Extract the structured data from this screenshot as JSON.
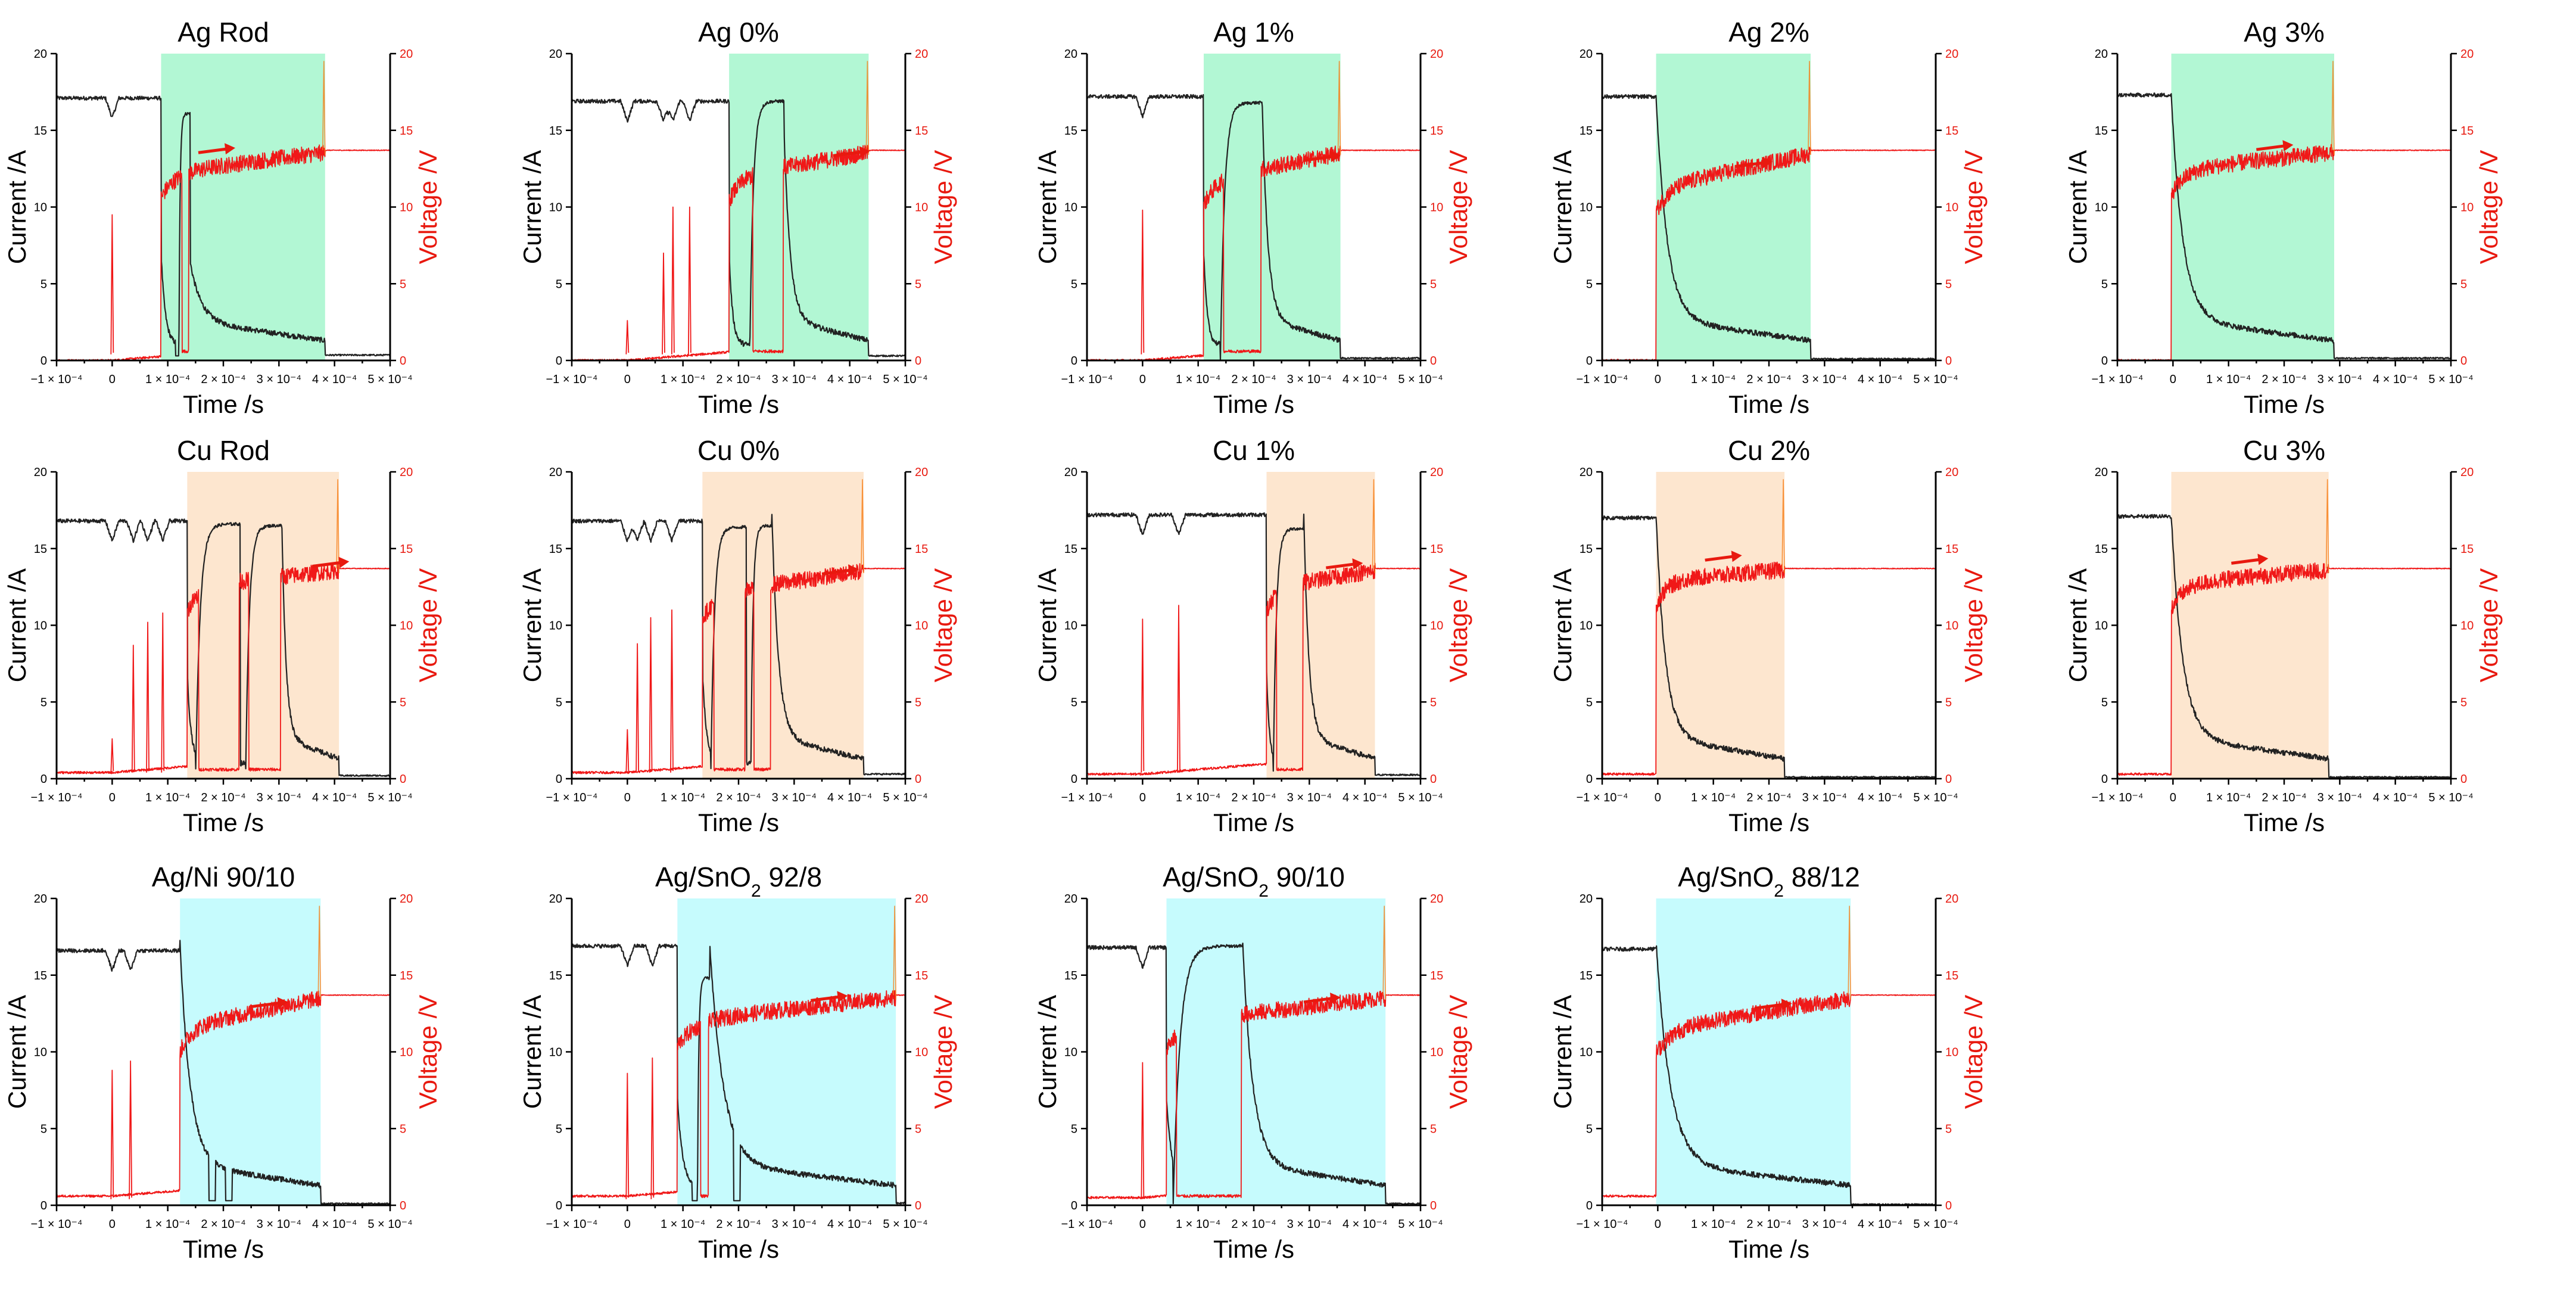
{
  "figure": {
    "shared_axes": {
      "x_label": "Time /s",
      "y_left_label": "Current /A",
      "y_right_label": "Voltage /V",
      "x_ticks": [
        "−1 × 10⁻⁴",
        "0",
        "1 × 10⁻⁴",
        "2 × 10⁻⁴",
        "3 × 10⁻⁴",
        "4 × 10⁻⁴",
        "5 × 10⁻⁴"
      ],
      "x_tick_values": [
        -0.0001,
        0,
        0.0001,
        0.0002,
        0.0003,
        0.0004,
        0.0005
      ],
      "y_left_ticks": [
        "0",
        "5",
        "10",
        "15",
        "20"
      ],
      "y_left_tick_values": [
        0,
        5,
        10,
        15,
        20
      ],
      "y_right_ticks": [
        "0",
        "5",
        "10",
        "15",
        "20"
      ],
      "y_right_tick_values": [
        0,
        5,
        10,
        15,
        20
      ],
      "xlim": [
        -0.0001,
        0.0005
      ],
      "ylim_left": [
        0,
        20
      ],
      "ylim_right": [
        0,
        20
      ]
    },
    "colors": {
      "current": "#222222",
      "voltage": "#f01818",
      "arrow": "#e8190f",
      "shade_ag": "#b2f7d4",
      "shade_cu": "#fde6cf",
      "shade_alloy": "#c6fbfd"
    }
  },
  "chart_data": [
    {
      "id": "ag-rod",
      "type": "line",
      "title": "Ag Rod",
      "shade": "shade_ag",
      "arc": [
        8.8e-05,
        0.000383
      ],
      "arrow": 0.000155,
      "drops": [
        0.00012
      ],
      "current": {
        "base": 17.1,
        "end": 0.35,
        "reignite": [
          [
            0.00012,
            0.00014,
            16.1
          ]
        ],
        "sag": 0.000115
      },
      "voltage": {
        "pre": 0,
        "level": 12.2,
        "end_level": 13.7,
        "spikes": [
          [
            0.0,
            9.5
          ]
        ]
      }
    },
    {
      "id": "ag-0",
      "type": "line",
      "title": "Ag 0%",
      "shade": "shade_ag",
      "arc": [
        0.000183,
        0.000434
      ],
      "arrow": 0.00037,
      "drops": [],
      "current": {
        "base": 16.9,
        "end": 0.3,
        "reignite": [
          [
            0.00022,
            0.000282,
            16.9
          ]
        ],
        "sag": 0.00028
      },
      "voltage": {
        "pre": 0,
        "level": 12.0,
        "end_level": 13.7,
        "spikes": [
          [
            0.0,
            2.6
          ],
          [
            6.5e-05,
            7
          ],
          [
            8.2e-05,
            10
          ],
          [
            0.000112,
            10
          ]
        ]
      }
    },
    {
      "id": "ag-1",
      "type": "line",
      "title": "Ag 1%",
      "shade": "shade_ag",
      "arc": [
        0.00011,
        0.000356
      ],
      "arrow": 0.00029,
      "drops": [],
      "current": {
        "base": 17.2,
        "end": 0.15,
        "reignite": [
          [
            0.00014,
            0.000215,
            16.8
          ]
        ],
        "sag": 0.000215
      },
      "voltage": {
        "pre": 0,
        "level": 11.7,
        "end_level": 13.7,
        "spikes": [
          [
            0.0,
            9.8
          ]
        ]
      }
    },
    {
      "id": "ag-2",
      "type": "line",
      "title": "Ag 2%",
      "shade": "shade_ag",
      "arc": [
        -3e-06,
        0.000275
      ],
      "arrow": 0.00014,
      "drops": [],
      "current": {
        "base": 17.2,
        "end": 0.1,
        "reignite": [],
        "sag": 0.0
      },
      "voltage": {
        "pre": 0,
        "level": 11.3,
        "end_level": 13.7,
        "spikes": []
      }
    },
    {
      "id": "ag-3",
      "type": "line",
      "title": "Ag 3%",
      "shade": "shade_ag",
      "arc": [
        -3e-06,
        0.00029
      ],
      "arrow": 0.00015,
      "drops": [],
      "current": {
        "base": 17.3,
        "end": 0.15,
        "reignite": [],
        "sag": 0.0
      },
      "voltage": {
        "pre": 0,
        "level": 12.4,
        "end_level": 13.7,
        "spikes": []
      }
    },
    {
      "id": "cu-rod",
      "type": "line",
      "title": "Cu Rod",
      "shade": "shade_cu",
      "arc": [
        0.000135,
        0.000408
      ],
      "arrow": 0.00036,
      "drops": [],
      "current": {
        "base": 16.8,
        "end": 0.2,
        "reignite": [
          [
            0.00015,
            0.00023,
            16.6
          ],
          [
            0.00024,
            0.000305,
            16.5
          ]
        ],
        "sag": 0.000305
      },
      "voltage": {
        "pre": 0.4,
        "level": 12.5,
        "end_level": 13.7,
        "spikes": [
          [
            0.0,
            2.6
          ],
          [
            3.8e-05,
            8.7
          ],
          [
            6.4e-05,
            10.2
          ],
          [
            9.1e-05,
            10.8
          ]
        ]
      }
    },
    {
      "id": "cu-0",
      "type": "line",
      "title": "Cu 0%",
      "shade": "shade_cu",
      "arc": [
        0.000135,
        0.000425
      ],
      "arrow": 0.00035,
      "drops": [],
      "current": {
        "base": 16.8,
        "end": 0.3,
        "reignite": [
          [
            0.00015,
            0.000214,
            16.4
          ],
          [
            0.000222,
            0.00026,
            16.5
          ]
        ],
        "sag": 0.00026
      },
      "voltage": {
        "pre": 0.4,
        "level": 12.0,
        "end_level": 13.7,
        "spikes": [
          [
            0.0,
            3.2
          ],
          [
            1.8e-05,
            8.8
          ],
          [
            4.2e-05,
            10.5
          ],
          [
            8e-05,
            11
          ]
        ]
      }
    },
    {
      "id": "cu-1",
      "type": "line",
      "title": "Cu 1%",
      "shade": "shade_cu",
      "arc": [
        0.000223,
        0.000418
      ],
      "arrow": 0.00033,
      "drops": [],
      "current": {
        "base": 17.2,
        "end": 0.25,
        "reignite": [
          [
            0.000235,
            0.00029,
            16.3
          ]
        ],
        "sag": 0.00029
      },
      "voltage": {
        "pre": 0.3,
        "level": 12.4,
        "end_level": 13.7,
        "spikes": [
          [
            0.0,
            10.4
          ],
          [
            6.5e-05,
            11.3
          ]
        ]
      }
    },
    {
      "id": "cu-2",
      "type": "line",
      "title": "Cu 2%",
      "shade": "shade_cu",
      "arc": [
        -3e-06,
        0.000228
      ],
      "arrow": 8.5e-05,
      "drops": [],
      "current": {
        "base": 17.0,
        "end": 0.1,
        "reignite": [],
        "sag": 0.0
      },
      "voltage": {
        "pre": 0.3,
        "level": 12.9,
        "end_level": 13.7,
        "spikes": []
      }
    },
    {
      "id": "cu-3",
      "type": "line",
      "title": "Cu 3%",
      "shade": "shade_cu",
      "arc": [
        -3e-06,
        0.00028
      ],
      "arrow": 0.000105,
      "drops": [],
      "current": {
        "base": 17.1,
        "end": 0.1,
        "reignite": [],
        "sag": 0.0
      },
      "voltage": {
        "pre": 0.3,
        "level": 12.7,
        "end_level": 13.7,
        "spikes": []
      }
    },
    {
      "id": "agni-90-10",
      "type": "line",
      "title": "Ag/Ni 90/10",
      "shade": "shade_alloy",
      "arc": [
        0.000122,
        0.000375
      ],
      "arrow": 0.00025,
      "drops": [
        0.00018,
        0.00021
      ],
      "current": {
        "base": 16.6,
        "end": 0.1,
        "reignite": [],
        "sag": 0.0
      },
      "voltage": {
        "pre": 0.6,
        "level": 11.6,
        "end_level": 13.7,
        "spikes": [
          [
            0.0,
            8.8
          ],
          [
            3.3e-05,
            9.4
          ]
        ]
      }
    },
    {
      "id": "agsno2-92-8",
      "type": "line",
      "title": "Ag/SnO2 92/8",
      "title_main": "Ag/SnO",
      "title_sub": "2",
      "title_rest": " 92/8",
      "shade": "shade_alloy",
      "arc": [
        9e-05,
        0.000483
      ],
      "arrow": 0.00033,
      "drops": [
        0.000122,
        0.000197
      ],
      "current": {
        "base": 16.9,
        "end": 0.15,
        "reignite": [
          [
            0.000126,
            0.000148,
            14.8
          ]
        ],
        "sag": 0.000148
      },
      "voltage": {
        "pre": 0.6,
        "level": 12.0,
        "end_level": 13.7,
        "spikes": [
          [
            0.0,
            8.6
          ],
          [
            4.5e-05,
            9.6
          ]
        ]
      }
    },
    {
      "id": "agsno2-90-10",
      "type": "line",
      "title": "Ag/SnO2 90/10",
      "title_main": "Ag/SnO",
      "title_sub": "2",
      "title_rest": " 90/10",
      "shade": "shade_alloy",
      "arc": [
        4.3e-05,
        0.000437
      ],
      "arrow": 0.00029,
      "drops": [],
      "current": {
        "base": 16.8,
        "end": 0.1,
        "reignite": [
          [
            5.5e-05,
            0.00018,
            16.9
          ]
        ],
        "sag": 0.00018
      },
      "voltage": {
        "pre": 0.5,
        "level": 11.9,
        "end_level": 13.7,
        "spikes": [
          [
            0.0,
            9.3
          ]
        ]
      }
    },
    {
      "id": "agsno2-88-12",
      "type": "line",
      "title": "Ag/SnO2 88/12",
      "title_main": "Ag/SnO",
      "title_sub": "2",
      "title_rest": " 88/12",
      "shade": "shade_alloy",
      "arc": [
        -3e-06,
        0.000347
      ],
      "arrow": 0.000175,
      "drops": [],
      "current": {
        "base": 16.7,
        "end": 0.05,
        "reignite": [],
        "sag": 0.0
      },
      "voltage": {
        "pre": 0.6,
        "level": 11.5,
        "end_level": 13.7,
        "spikes": []
      }
    }
  ]
}
